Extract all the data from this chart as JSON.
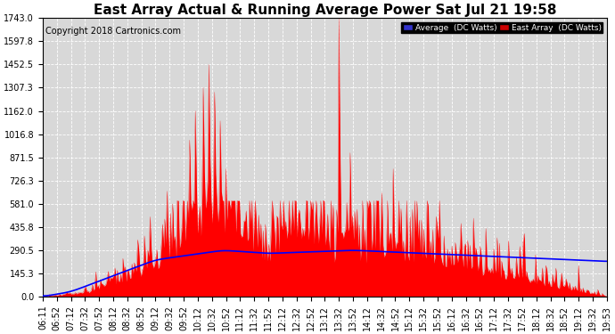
{
  "title": "East Array Actual & Running Average Power Sat Jul 21 19:58",
  "copyright": "Copyright 2018 Cartronics.com",
  "legend_labels": [
    "Average  (DC Watts)",
    "East Array  (DC Watts)"
  ],
  "yticks": [
    0.0,
    145.3,
    290.5,
    435.8,
    581.0,
    726.3,
    871.5,
    1016.8,
    1162.0,
    1307.3,
    1452.5,
    1597.8,
    1743.0
  ],
  "ymax": 1743.0,
  "ymin": 0.0,
  "background_color": "#ffffff",
  "plot_bg_color": "#d8d8d8",
  "grid_color": "#ffffff",
  "bar_color": "#ff0000",
  "avg_color": "#0000ff",
  "title_fontsize": 11,
  "copyright_fontsize": 7,
  "tick_fontsize": 7,
  "xtick_labels": [
    "06:11",
    "06:52",
    "07:12",
    "07:32",
    "07:52",
    "08:12",
    "08:32",
    "08:52",
    "09:12",
    "09:32",
    "09:52",
    "10:12",
    "10:32",
    "10:52",
    "11:12",
    "11:32",
    "11:52",
    "12:12",
    "12:32",
    "12:52",
    "13:12",
    "13:32",
    "13:52",
    "14:12",
    "14:32",
    "14:52",
    "15:12",
    "15:32",
    "15:52",
    "16:12",
    "16:32",
    "16:52",
    "17:12",
    "17:32",
    "17:52",
    "18:12",
    "18:32",
    "18:52",
    "19:12",
    "19:32",
    "19:53"
  ]
}
